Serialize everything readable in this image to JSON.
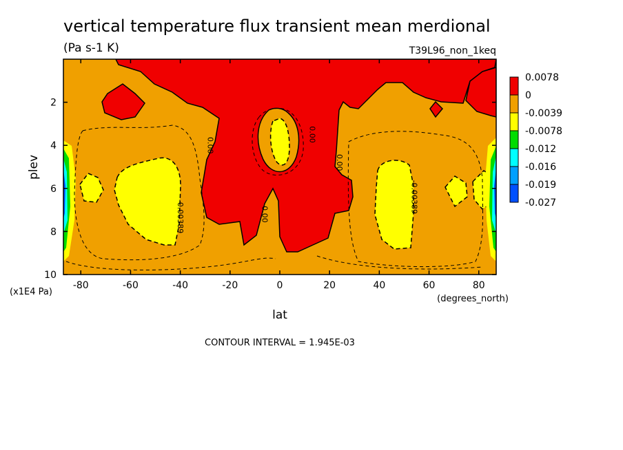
{
  "chart_data": {
    "type": "heatmap",
    "title": "vertical temperature flux transient mean merdional",
    "subtitle": "(Pa s-1 K)",
    "run_label": "T39L96_non_1keq",
    "xlabel": "lat",
    "xunits": "(degrees_north)",
    "ylabel": "plev",
    "yunits": "(x1E4 Pa)",
    "xlim": [
      -87,
      87
    ],
    "ylim": [
      0,
      10
    ],
    "y_inverted": true,
    "x_ticks": [
      -80,
      -60,
      -40,
      -20,
      0,
      20,
      40,
      60,
      80
    ],
    "y_ticks": [
      2,
      4,
      6,
      8,
      10
    ],
    "grid": false,
    "legend": "right",
    "contour_interval_text": "CONTOUR INTERVAL = 1.945E-03",
    "levels": [
      {
        "label": "0.0078",
        "color": "#f00000"
      },
      {
        "label": "0",
        "color": "#f0a000"
      },
      {
        "label": "-0.0039",
        "color": "#ffff00"
      },
      {
        "label": "-0.0078",
        "color": "#00dc00"
      },
      {
        "label": "-0.012",
        "color": "#00ffff"
      },
      {
        "label": "-0.016",
        "color": "#00a0ff"
      },
      {
        "label": "-0.019",
        "color": "#0050ff"
      },
      {
        "label": "-0.027",
        "color": "#0000ff"
      }
    ],
    "contour_labels": [
      {
        "text": "0.00",
        "x": -29,
        "y": 4
      },
      {
        "text": "0.00",
        "x": 12,
        "y": 3.5
      },
      {
        "text": "0.00",
        "x": 23,
        "y": 4.8
      },
      {
        "text": "0.00",
        "x": -7,
        "y": 7.2
      },
      {
        "text": "-0.00389",
        "x": -41,
        "y": 7.3
      },
      {
        "text": "-0.00389",
        "x": 53,
        "y": 6.4
      }
    ]
  }
}
